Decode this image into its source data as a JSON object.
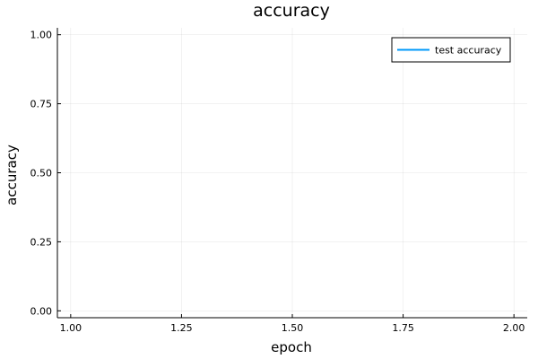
{
  "chart_data": {
    "type": "line",
    "title": "accuracy",
    "xlabel": "epoch",
    "ylabel": "accuracy",
    "xlim": [
      0.97,
      2.03
    ],
    "ylim": [
      -0.025,
      1.025
    ],
    "xticks": [
      1.0,
      1.25,
      1.5,
      1.75,
      2.0
    ],
    "xtick_labels": [
      "1.00",
      "1.25",
      "1.50",
      "1.75",
      "2.00"
    ],
    "yticks": [
      0.0,
      0.25,
      0.5,
      0.75,
      1.0
    ],
    "ytick_labels": [
      "0.00",
      "0.25",
      "0.50",
      "0.75",
      "1.00"
    ],
    "grid": true,
    "legend_position": "top-right",
    "series": [
      {
        "name": "test accuracy",
        "color": "#009AFA",
        "x": [],
        "y": []
      }
    ]
  }
}
